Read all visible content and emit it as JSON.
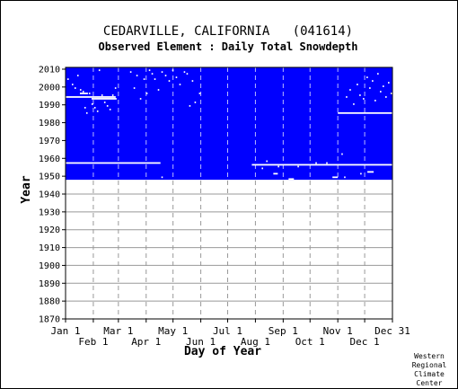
{
  "chart_data": {
    "type": "heatmap",
    "title": "CEDARVILLE, CALIFORNIA   (041614)",
    "subtitle": "Observed Element : Daily Total Snowdepth",
    "xlabel": "Day of Year",
    "ylabel": "Year",
    "ylim": [
      1870,
      2011
    ],
    "xlim": [
      1,
      366
    ],
    "y_ticks": [
      2010,
      2000,
      1990,
      1980,
      1970,
      1960,
      1950,
      1940,
      1930,
      1920,
      1910,
      1900,
      1890,
      1880,
      1870
    ],
    "x_ticks_top": [
      {
        "label": "Jan 1",
        "day": 1
      },
      {
        "label": "Mar 1",
        "day": 60
      },
      {
        "label": "May 1",
        "day": 121
      },
      {
        "label": "Jul 1",
        "day": 182
      },
      {
        "label": "Sep 1",
        "day": 244
      },
      {
        "label": "Nov 1",
        "day": 305
      },
      {
        "label": "Dec 31",
        "day": 366
      }
    ],
    "x_ticks_bottom": [
      {
        "label": "Feb 1",
        "day": 32
      },
      {
        "label": "Apr 1",
        "day": 91
      },
      {
        "label": "Jun 1",
        "day": 152
      },
      {
        "label": "Aug 1",
        "day": 213
      },
      {
        "label": "Oct 1",
        "day": 274
      },
      {
        "label": "Dec 1",
        "day": 335
      }
    ],
    "grid": true,
    "observed_years": [
      1948,
      2010
    ],
    "colors": {
      "observed": "#0000ff",
      "missing": "#ffffff",
      "grid": "#999999",
      "axis": "#000000"
    },
    "missing_runs": [
      {
        "year": 1957,
        "start": 1,
        "end": 107
      },
      {
        "year": 1956,
        "start": 209,
        "end": 366
      },
      {
        "year": 1994,
        "start": 1,
        "end": 57
      },
      {
        "year": 1993,
        "start": 30,
        "end": 58
      },
      {
        "year": 1985,
        "start": 305,
        "end": 366
      },
      {
        "year": 1948,
        "start": 250,
        "end": 256
      },
      {
        "year": 1949,
        "start": 299,
        "end": 305
      },
      {
        "year": 1952,
        "start": 338,
        "end": 345
      },
      {
        "year": 1951,
        "start": 233,
        "end": 238
      },
      {
        "year": 1996,
        "start": 17,
        "end": 26
      }
    ],
    "missing_points": [
      [
        3,
        2004
      ],
      [
        8,
        2001
      ],
      [
        11,
        1999
      ],
      [
        14,
        2006
      ],
      [
        17,
        1998
      ],
      [
        20,
        1997
      ],
      [
        22,
        1988
      ],
      [
        24,
        1985
      ],
      [
        27,
        1996
      ],
      [
        30,
        1990
      ],
      [
        33,
        1988
      ],
      [
        36,
        1986
      ],
      [
        38,
        2009
      ],
      [
        41,
        1995
      ],
      [
        44,
        1991
      ],
      [
        47,
        1989
      ],
      [
        50,
        1987
      ],
      [
        53,
        1995
      ],
      [
        56,
        1999
      ],
      [
        73,
        2008
      ],
      [
        77,
        1999
      ],
      [
        80,
        2006
      ],
      [
        84,
        1993
      ],
      [
        88,
        2004
      ],
      [
        91,
        1996
      ],
      [
        94,
        2009
      ],
      [
        97,
        2007
      ],
      [
        100,
        2004
      ],
      [
        104,
        1998
      ],
      [
        108,
        2008
      ],
      [
        112,
        2006
      ],
      [
        116,
        2003
      ],
      [
        120,
        2009
      ],
      [
        124,
        2005
      ],
      [
        128,
        2001
      ],
      [
        133,
        2008
      ],
      [
        136,
        2007
      ],
      [
        139,
        1989
      ],
      [
        142,
        2003
      ],
      [
        145,
        1991
      ],
      [
        108,
        1949
      ],
      [
        150,
        1996
      ],
      [
        220,
        1954
      ],
      [
        225,
        1958
      ],
      [
        238,
        1955
      ],
      [
        260,
        1955
      ],
      [
        280,
        1957
      ],
      [
        292,
        1957
      ],
      [
        309,
        1962
      ],
      [
        314,
        1994
      ],
      [
        318,
        1998
      ],
      [
        322,
        1990
      ],
      [
        326,
        2001
      ],
      [
        329,
        1995
      ],
      [
        333,
        1993
      ],
      [
        337,
        2005
      ],
      [
        340,
        1999
      ],
      [
        343,
        2003
      ],
      [
        346,
        1992
      ],
      [
        349,
        2007
      ],
      [
        352,
        1997
      ],
      [
        355,
        2000
      ],
      [
        358,
        1994
      ],
      [
        361,
        2002
      ],
      [
        364,
        1996
      ],
      [
        312,
        1949
      ],
      [
        330,
        1951
      ]
    ]
  },
  "footer": {
    "credit_lines": [
      "Western",
      "Regional",
      "Climate",
      "Center"
    ]
  }
}
